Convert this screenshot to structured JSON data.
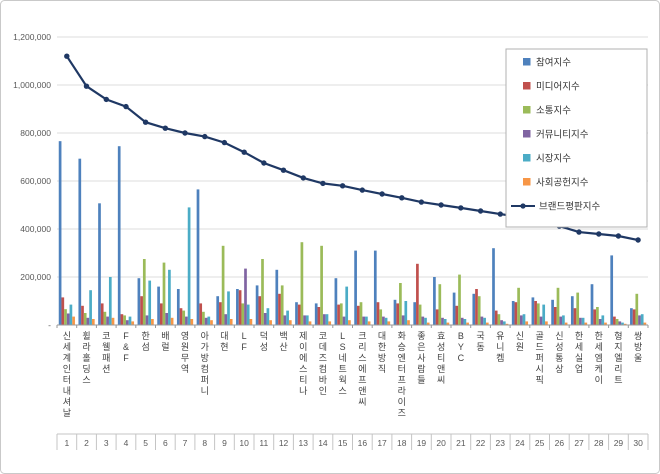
{
  "window": {
    "background": "#ffffff",
    "frame_border_color": "#c9c9c9"
  },
  "chart_data": {
    "type": "bar+line",
    "title": "",
    "grid": true,
    "legend_position": "top-right",
    "categories": [
      "신세계인터내셔날",
      "휠라홀딩스",
      "코웰패션",
      "F&F",
      "한섬",
      "배럴",
      "영원무역",
      "아가방컴퍼니",
      "대현",
      "LF",
      "덕성",
      "백산",
      "제이에스티나",
      "코데즈컴바인",
      "LS네트웍스",
      "크리스에프앤씨",
      "대한방직",
      "화승엔터프라이즈",
      "좋은사람들",
      "효성티앤씨",
      "BYC",
      "국동",
      "유니켐",
      "신원",
      "골드퍼시픽",
      "신성통상",
      "한세실업",
      "한세엠케이",
      "형지엘리트",
      "쌍방울"
    ],
    "rank_labels": [
      "1",
      "2",
      "3",
      "4",
      "5",
      "6",
      "7",
      "8",
      "9",
      "10",
      "11",
      "12",
      "13",
      "14",
      "15",
      "16",
      "17",
      "18",
      "19",
      "20",
      "21",
      "22",
      "23",
      "24",
      "25",
      "26",
      "27",
      "28",
      "29",
      "30"
    ],
    "y_axis": {
      "min": 0,
      "max": 1200000,
      "step": 200000,
      "tick_labels": [
        "-",
        "200,000",
        "400,000",
        "600,000",
        "800,000",
        "1,000,000",
        "1,200,000"
      ]
    },
    "series": [
      {
        "name": "참여지수",
        "type": "bar",
        "color": "#4E81BD",
        "values": [
          766000,
          693000,
          507000,
          745000,
          195000,
          160000,
          150000,
          565000,
          120000,
          150000,
          165000,
          230000,
          95000,
          90000,
          195000,
          310000,
          310000,
          105000,
          95000,
          200000,
          135000,
          130000,
          320000,
          100000,
          115000,
          105000,
          120000,
          170000,
          290000,
          70000
        ]
      },
      {
        "name": "미디어지수",
        "type": "bar",
        "color": "#C0504D",
        "values": [
          115000,
          80000,
          90000,
          45000,
          120000,
          90000,
          70000,
          90000,
          95000,
          145000,
          120000,
          130000,
          85000,
          75000,
          85000,
          80000,
          95000,
          90000,
          255000,
          65000,
          80000,
          150000,
          60000,
          95000,
          100000,
          75000,
          70000,
          65000,
          35000,
          65000
        ]
      },
      {
        "name": "소통지수",
        "type": "bar",
        "color": "#9BBB59",
        "values": [
          66000,
          50000,
          55000,
          40000,
          275000,
          260000,
          60000,
          55000,
          330000,
          90000,
          275000,
          165000,
          345000,
          330000,
          90000,
          95000,
          65000,
          175000,
          85000,
          170000,
          210000,
          120000,
          45000,
          155000,
          90000,
          155000,
          135000,
          75000,
          25000,
          130000
        ]
      },
      {
        "name": "커뮤니티지수",
        "type": "bar",
        "color": "#8064A2",
        "values": [
          48000,
          30000,
          35000,
          20000,
          40000,
          50000,
          35000,
          30000,
          45000,
          235000,
          50000,
          40000,
          40000,
          45000,
          35000,
          35000,
          35000,
          40000,
          35000,
          30000,
          30000,
          35000,
          20000,
          40000,
          35000,
          35000,
          30000,
          25000,
          15000,
          40000
        ]
      },
      {
        "name": "시장지수",
        "type": "bar",
        "color": "#4BACC6",
        "values": [
          85000,
          145000,
          200000,
          35000,
          185000,
          230000,
          490000,
          35000,
          140000,
          85000,
          70000,
          60000,
          40000,
          45000,
          160000,
          35000,
          30000,
          100000,
          30000,
          25000,
          25000,
          30000,
          15000,
          45000,
          85000,
          40000,
          30000,
          40000,
          10000,
          45000
        ]
      },
      {
        "name": "사회공헌지수",
        "type": "bar",
        "color": "#F79646",
        "values": [
          35000,
          25000,
          30000,
          15000,
          25000,
          30000,
          25000,
          20000,
          25000,
          25000,
          20000,
          20000,
          15000,
          15000,
          20000,
          15000,
          15000,
          20000,
          10000,
          10000,
          10000,
          10000,
          5000,
          15000,
          15000,
          10000,
          10000,
          10000,
          5000,
          10000
        ]
      },
      {
        "name": "브랜드평판지수",
        "type": "line",
        "color": "#1F3864",
        "values": [
          1120000,
          995000,
          940000,
          910000,
          845000,
          820000,
          800000,
          785000,
          760000,
          720000,
          675000,
          645000,
          613000,
          590000,
          580000,
          562000,
          546000,
          530000,
          512000,
          500000,
          488000,
          475000,
          462000,
          450000,
          437000,
          412000,
          387000,
          379000,
          371000,
          354000
        ]
      }
    ]
  }
}
